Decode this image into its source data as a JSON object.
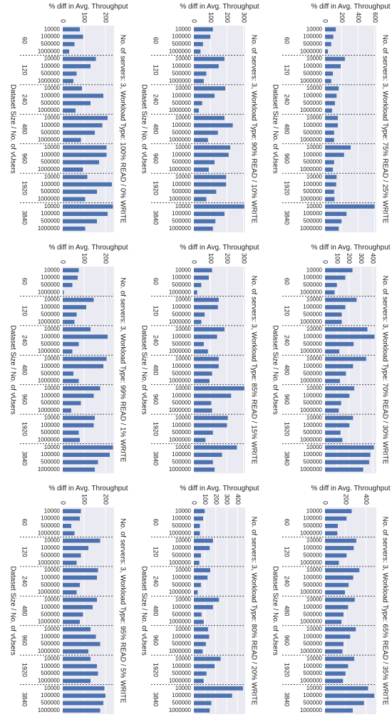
{
  "figure": {
    "x_axis_label": "Dataset Size / No. of vUsers",
    "y_axis_label": "% diff in Avg. Throughput",
    "user_groups": [
      "60",
      "120",
      "240",
      "480",
      "960",
      "1920",
      "3840"
    ],
    "dataset_sizes": [
      "10000",
      "100000",
      "500000",
      "1000000"
    ]
  },
  "chart_data": [
    {
      "type": "bar",
      "title": "No. of servers: 3, Workload Type: 100% READ / 0% WRITE",
      "value_ticks": [
        0,
        100,
        200
      ],
      "value_max": 240,
      "series": [
        {
          "name": "60",
          "values": [
            80,
            95,
            55,
            30
          ]
        },
        {
          "name": "120",
          "values": [
            155,
            130,
            65,
            50
          ]
        },
        {
          "name": "240",
          "values": [
            90,
            190,
            130,
            60
          ]
        },
        {
          "name": "480",
          "values": [
            210,
            185,
            150,
            85
          ]
        },
        {
          "name": "960",
          "values": [
            205,
            205,
            170,
            95
          ]
        },
        {
          "name": "1920",
          "values": [
            115,
            230,
            160,
            105
          ]
        },
        {
          "name": "3840",
          "values": [
            235,
            210,
            160,
            105
          ]
        }
      ]
    },
    {
      "type": "bar",
      "title": "No. of servers: 3, Workload Type: 99% READ / 1% WRITE",
      "value_ticks": [
        0,
        100,
        200
      ],
      "value_max": 240,
      "series": [
        {
          "name": "60",
          "values": [
            75,
            70,
            45,
            5
          ]
        },
        {
          "name": "120",
          "values": [
            145,
            110,
            65,
            55
          ]
        },
        {
          "name": "240",
          "values": [
            130,
            210,
            75,
            45
          ]
        },
        {
          "name": "480",
          "values": [
            205,
            190,
            50,
            75
          ]
        },
        {
          "name": "960",
          "values": [
            175,
            145,
            85,
            40
          ]
        },
        {
          "name": "1920",
          "values": [
            150,
            145,
            75,
            80
          ]
        },
        {
          "name": "3840",
          "values": [
            235,
            220,
            165,
            150
          ]
        }
      ]
    },
    {
      "type": "bar",
      "title": "No. of servers: 3, Workload Type: 95% READ / 5% WRITE",
      "value_ticks": [
        0,
        100,
        200
      ],
      "value_max": 240,
      "series": [
        {
          "name": "60",
          "values": [
            85,
            80,
            40,
            55
          ]
        },
        {
          "name": "120",
          "values": [
            175,
            120,
            85,
            65
          ]
        },
        {
          "name": "240",
          "values": [
            165,
            160,
            80,
            65
          ]
        },
        {
          "name": "480",
          "values": [
            160,
            140,
            95,
            80
          ]
        },
        {
          "name": "960",
          "values": [
            130,
            155,
            175,
            120
          ]
        },
        {
          "name": "1920",
          "values": [
            130,
            160,
            165,
            130
          ]
        },
        {
          "name": "3840",
          "values": [
            195,
            200,
            190,
            175
          ]
        }
      ]
    },
    {
      "type": "bar",
      "title": "No. of servers: 3, Workload Type: 90% READ / 10% WRITE",
      "value_ticks": [
        0,
        100,
        200,
        300
      ],
      "value_max": 310,
      "series": [
        {
          "name": "60",
          "values": [
            115,
            100,
            55,
            40
          ]
        },
        {
          "name": "120",
          "values": [
            185,
            150,
            75,
            60
          ]
        },
        {
          "name": "240",
          "values": [
            190,
            125,
            50,
            30
          ]
        },
        {
          "name": "480",
          "values": [
            185,
            235,
            145,
            85
          ]
        },
        {
          "name": "960",
          "values": [
            220,
            210,
            125,
            90
          ]
        },
        {
          "name": "1920",
          "values": [
            195,
            195,
            135,
            75
          ]
        },
        {
          "name": "3840",
          "values": [
            305,
            185,
            130,
            115
          ]
        }
      ]
    },
    {
      "type": "bar",
      "title": "No. of servers: 3, Workload Type: 85% READ / 15% WRITE",
      "value_ticks": [
        0,
        100,
        200,
        300
      ],
      "value_max": 310,
      "series": [
        {
          "name": "60",
          "values": [
            110,
            90,
            45,
            20
          ]
        },
        {
          "name": "120",
          "values": [
            150,
            145,
            65,
            45
          ]
        },
        {
          "name": "240",
          "values": [
            185,
            140,
            60,
            85
          ]
        },
        {
          "name": "480",
          "values": [
            150,
            150,
            110,
            95
          ]
        },
        {
          "name": "960",
          "values": [
            305,
            225,
            105,
            110
          ]
        },
        {
          "name": "1920",
          "values": [
            205,
            200,
            115,
            70
          ]
        },
        {
          "name": "3840",
          "values": [
            260,
            170,
            115,
            125
          ]
        }
      ]
    },
    {
      "type": "bar",
      "title": "No. of servers: 3, Workload Type: 80% READ / 20% WRITE",
      "value_ticks": [
        0,
        100,
        200,
        300,
        400
      ],
      "value_max": 470,
      "series": [
        {
          "name": "60",
          "values": [
            100,
            85,
            55,
            55
          ]
        },
        {
          "name": "120",
          "values": [
            175,
            145,
            65,
            50
          ]
        },
        {
          "name": "240",
          "values": [
            150,
            125,
            65,
            35
          ]
        },
        {
          "name": "480",
          "values": [
            230,
            175,
            70,
            90
          ]
        },
        {
          "name": "960",
          "values": [
            130,
            140,
            110,
            80
          ]
        },
        {
          "name": "1920",
          "values": [
            245,
            190,
            115,
            90
          ]
        },
        {
          "name": "3840",
          "values": [
            450,
            350,
            160,
            145
          ]
        }
      ]
    },
    {
      "type": "bar",
      "title": "No. of servers: 3, Workload Type: 75% READ / 25% WRITE",
      "value_ticks": [
        0,
        200,
        400,
        600
      ],
      "value_max": 620,
      "series": [
        {
          "name": "60",
          "values": [
            130,
            100,
            75,
            35
          ]
        },
        {
          "name": "120",
          "values": [
            240,
            190,
            95,
            75
          ]
        },
        {
          "name": "240",
          "values": [
            165,
            140,
            120,
            85
          ]
        },
        {
          "name": "480",
          "values": [
            155,
            155,
            110,
            110
          ]
        },
        {
          "name": "960",
          "values": [
            310,
            230,
            110,
            95
          ]
        },
        {
          "name": "1920",
          "values": [
            140,
            135,
            110,
            115
          ]
        },
        {
          "name": "3840",
          "values": [
            600,
            260,
            200,
            165
          ]
        }
      ]
    },
    {
      "type": "bar",
      "title": "No. of servers: 3, Workload Type: 70% READ / 30% WRITE",
      "value_ticks": [
        0,
        100,
        200,
        300,
        400
      ],
      "value_max": 430,
      "series": [
        {
          "name": "60",
          "values": [
            230,
            170,
            100,
            80
          ]
        },
        {
          "name": "120",
          "values": [
            265,
            170,
            140,
            140
          ]
        },
        {
          "name": "240",
          "values": [
            355,
            415,
            240,
            120
          ]
        },
        {
          "name": "480",
          "values": [
            345,
            235,
            175,
            125
          ]
        },
        {
          "name": "960",
          "values": [
            245,
            205,
            135,
            115
          ]
        },
        {
          "name": "1920",
          "values": [
            235,
            205,
            130,
            145
          ]
        },
        {
          "name": "3840",
          "values": [
            410,
            380,
            370,
            320
          ]
        }
      ]
    },
    {
      "type": "bar",
      "title": "No. of servers: 3, Workload Type: 65% READ / 35% WRITE",
      "value_ticks": [
        0,
        200,
        400
      ],
      "value_max": 500,
      "series": [
        {
          "name": "60",
          "values": [
            260,
            210,
            125,
            120
          ]
        },
        {
          "name": "120",
          "values": [
            305,
            280,
            210,
            135
          ]
        },
        {
          "name": "240",
          "values": [
            335,
            275,
            230,
            195
          ]
        },
        {
          "name": "480",
          "values": [
            290,
            225,
            180,
            160
          ]
        },
        {
          "name": "960",
          "values": [
            300,
            245,
            180,
            170
          ]
        },
        {
          "name": "1920",
          "values": [
            285,
            225,
            200,
            175
          ]
        },
        {
          "name": "3840",
          "values": [
            420,
            480,
            380,
            270
          ]
        }
      ]
    }
  ]
}
